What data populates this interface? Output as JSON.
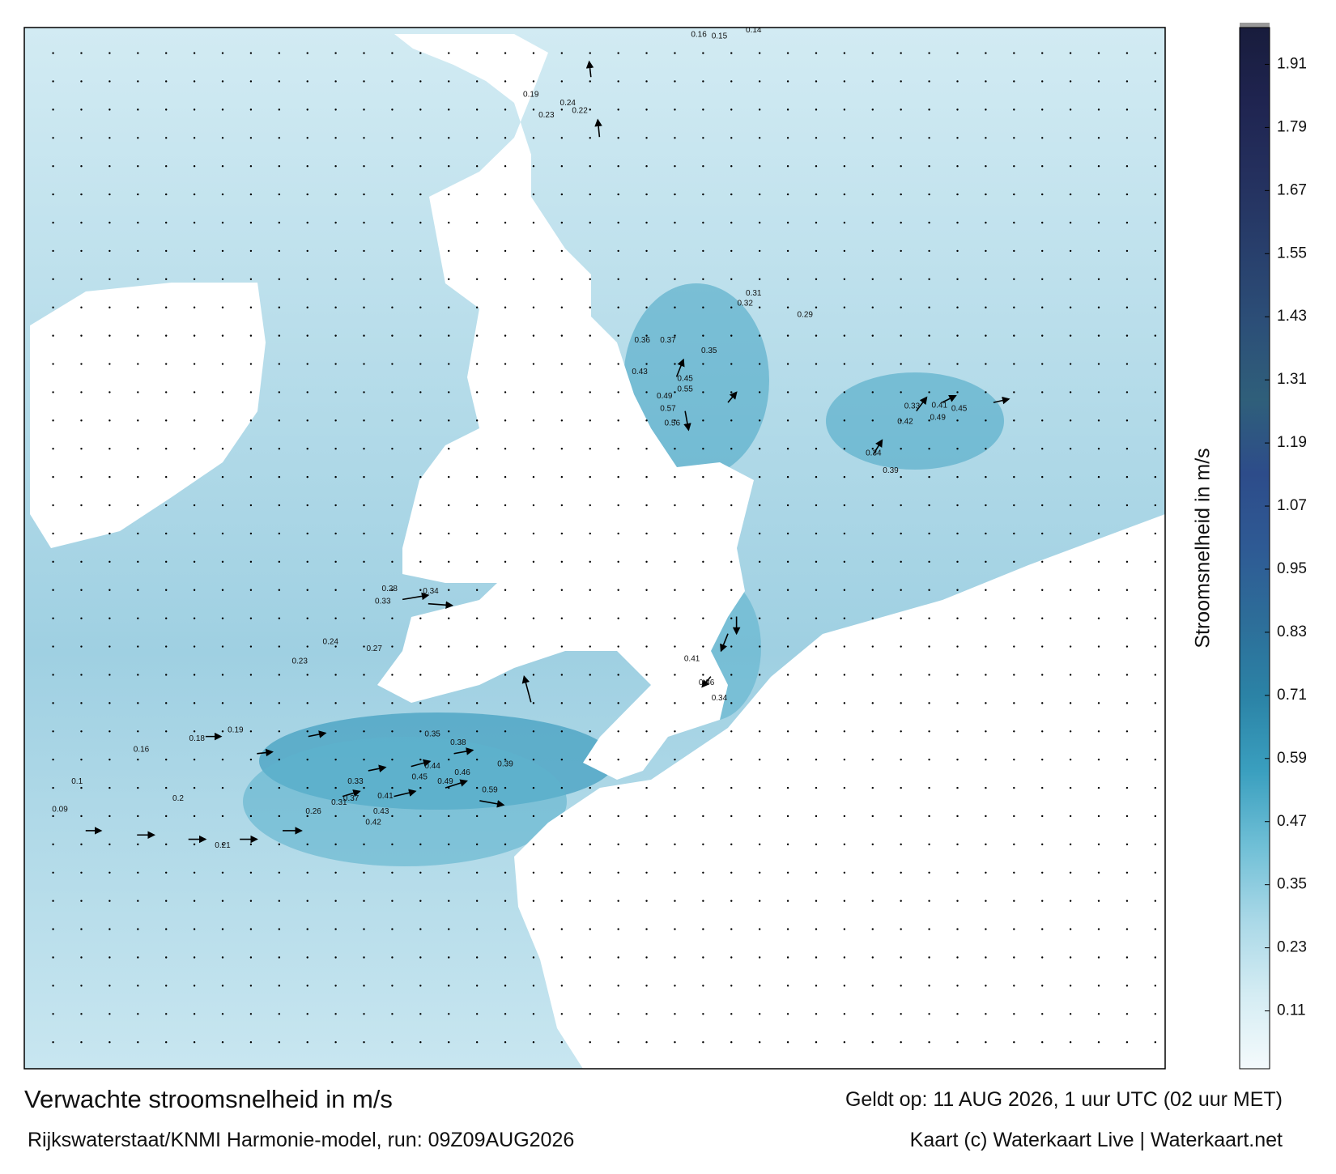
{
  "title": "Verwachte stroomsnelheid in m/s",
  "subtitle": "Rijkswaterstaat/KNMI Harmonie-model, run: 09Z09AUG2026",
  "valid_time": "Geldt op: 11 AUG 2026, 1 uur UTC (02 uur MET)",
  "credit": "Kaart (c) Waterkaart Live | Waterkaart.net",
  "colorbar": {
    "label": "Stroomsnelheid in m/s",
    "range": [
      0,
      1.98
    ],
    "ticks": [
      0.11,
      0.23,
      0.35,
      0.47,
      0.59,
      0.71,
      0.83,
      0.95,
      1.07,
      1.19,
      1.31,
      1.43,
      1.55,
      1.67,
      1.79,
      1.91
    ],
    "colors": [
      "#f4fafc",
      "#d4ecf3",
      "#a9d8e7",
      "#6fbfd6",
      "#3a9fbf",
      "#2b83a6",
      "#2d6e99",
      "#2e5a94",
      "#2d4c8a",
      "#2f5f7a",
      "#2c4f78",
      "#283f6c",
      "#24305e",
      "#1f2450",
      "#181c3c"
    ]
  },
  "map_labels": [
    "0.59",
    "0.49",
    "0.46",
    "0.44",
    "0.45",
    "0.41",
    "0.43",
    "0.38",
    "0.35",
    "0.39",
    "0.37",
    "0.33",
    "0.42",
    "0.31",
    "0.26",
    "0.2",
    "0.21",
    "0.19",
    "0.18",
    "0.16",
    "0.1",
    "0.09",
    "0.55",
    "0.49",
    "0.57",
    "0.56",
    "0.45",
    "0.43",
    "0.37",
    "0.36",
    "0.35",
    "0.32",
    "0.31",
    "0.29",
    "0.41",
    "0.49",
    "0.45",
    "0.42",
    "0.33",
    "0.34",
    "0.39",
    "0.41",
    "0.36",
    "0.34",
    "0.24",
    "0.23",
    "0.27",
    "0.33",
    "0.34",
    "0.28",
    "0.22",
    "0.24",
    "0.23",
    "0.19",
    "0.14",
    "0.16",
    "0.15"
  ]
}
